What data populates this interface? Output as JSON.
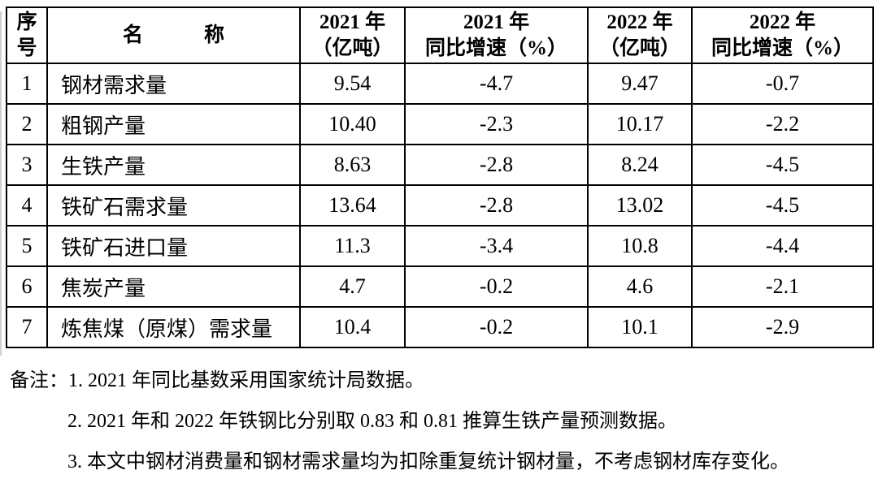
{
  "table": {
    "columns": [
      {
        "line1": "序",
        "line2": "号"
      },
      {
        "line1": "名　　　称",
        "line2": ""
      },
      {
        "line1": "2021 年",
        "line2": "（亿吨）"
      },
      {
        "line1": "2021 年",
        "line2": "同比增速（%）"
      },
      {
        "line1": "2022 年",
        "line2": "（亿吨）"
      },
      {
        "line1": "2022 年",
        "line2": "同比增速（%）"
      }
    ],
    "rows": [
      {
        "index": "1",
        "name": "钢材需求量",
        "v2021": "9.54",
        "g2021": "-4.7",
        "v2022": "9.47",
        "g2022": "-0.7"
      },
      {
        "index": "2",
        "name": "粗钢产量",
        "v2021": "10.40",
        "g2021": "-2.3",
        "v2022": "10.17",
        "g2022": "-2.2"
      },
      {
        "index": "3",
        "name": "生铁产量",
        "v2021": "8.63",
        "g2021": "-2.8",
        "v2022": "8.24",
        "g2022": "-4.5"
      },
      {
        "index": "4",
        "name": "铁矿石需求量",
        "v2021": "13.64",
        "g2021": "-2.8",
        "v2022": "13.02",
        "g2022": "-4.5"
      },
      {
        "index": "5",
        "name": "铁矿石进口量",
        "v2021": "11.3",
        "g2021": "-3.4",
        "v2022": "10.8",
        "g2022": "-4.4"
      },
      {
        "index": "6",
        "name": "焦炭产量",
        "v2021": "4.7",
        "g2021": "-0.2",
        "v2022": "4.6",
        "g2022": "-2.1"
      },
      {
        "index": "7",
        "name": "炼焦煤（原煤）需求量",
        "v2021": "10.4",
        "g2021": "-0.2",
        "v2022": "10.1",
        "g2022": "-2.9"
      }
    ]
  },
  "notes": {
    "label": "备注：",
    "items": [
      "1. 2021 年同比基数采用国家统计局数据。",
      "2. 2021 年和 2022 年铁钢比分别取 0.83 和 0.81 推算生铁产量预测数据。",
      "3. 本文中钢材消费量和钢材需求量均为扣除重复统计钢材量，不考虑钢材库存变化。"
    ]
  },
  "colors": {
    "border": "#000000",
    "text": "#000000",
    "background": "#ffffff"
  }
}
